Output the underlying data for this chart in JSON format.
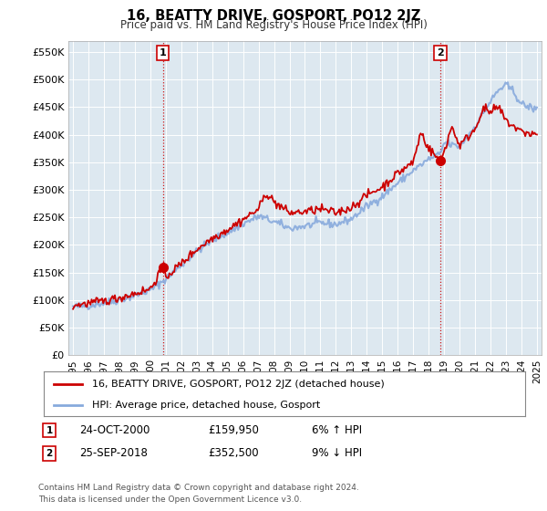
{
  "title": "16, BEATTY DRIVE, GOSPORT, PO12 2JZ",
  "subtitle": "Price paid vs. HM Land Registry's House Price Index (HPI)",
  "ylabel_ticks": [
    "£0",
    "£50K",
    "£100K",
    "£150K",
    "£200K",
    "£250K",
    "£300K",
    "£350K",
    "£400K",
    "£450K",
    "£500K",
    "£550K"
  ],
  "ytick_vals": [
    0,
    50000,
    100000,
    150000,
    200000,
    250000,
    300000,
    350000,
    400000,
    450000,
    500000,
    550000
  ],
  "ylim": [
    0,
    570000
  ],
  "xlim_start": 1994.7,
  "xlim_end": 2025.3,
  "sale1_x": 2000.82,
  "sale1_y": 159950,
  "sale1_label": "1",
  "sale1_date": "24-OCT-2000",
  "sale1_price": "£159,950",
  "sale1_hpi": "6% ↑ HPI",
  "sale2_x": 2018.75,
  "sale2_y": 352500,
  "sale2_label": "2",
  "sale2_date": "25-SEP-2018",
  "sale2_price": "£352,500",
  "sale2_hpi": "9% ↓ HPI",
  "line_color_house": "#cc0000",
  "line_color_hpi": "#88aadd",
  "vline_color": "#cc0000",
  "chart_bg_color": "#dde8f0",
  "background_color": "#ffffff",
  "grid_color": "#ffffff",
  "legend_label_house": "16, BEATTY DRIVE, GOSPORT, PO12 2JZ (detached house)",
  "legend_label_hpi": "HPI: Average price, detached house, Gosport",
  "footnote": "Contains HM Land Registry data © Crown copyright and database right 2024.\nThis data is licensed under the Open Government Licence v3.0.",
  "xtick_years": [
    1995,
    1996,
    1997,
    1998,
    1999,
    2000,
    2001,
    2002,
    2003,
    2004,
    2005,
    2006,
    2007,
    2008,
    2009,
    2010,
    2011,
    2012,
    2013,
    2014,
    2015,
    2016,
    2017,
    2018,
    2019,
    2020,
    2021,
    2022,
    2023,
    2024,
    2025
  ]
}
